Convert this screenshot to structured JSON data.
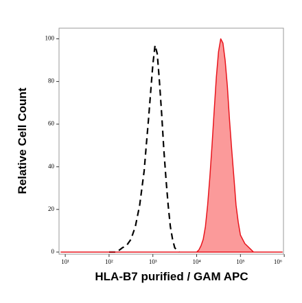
{
  "chart_data": {
    "type": "line",
    "xscale": "log",
    "xlabel": "HLA-B7 purified / GAM APC",
    "ylabel": "Relative Cell Count",
    "xlim": [
      7.2,
      960000
    ],
    "ylim": [
      -1,
      105
    ],
    "xticks": [
      {
        "value": 10,
        "label": "10¹"
      },
      {
        "value": 100,
        "label": "10²"
      },
      {
        "value": 1000,
        "label": "10³"
      },
      {
        "value": 10000,
        "label": "10⁴"
      },
      {
        "value": 100000,
        "label": "10⁵"
      },
      {
        "value": 1000000,
        "label": "10⁶"
      }
    ],
    "yticks": [
      0,
      20,
      40,
      60,
      80,
      100
    ],
    "series": [
      {
        "color": "#000000",
        "dashed": true,
        "filled": false,
        "x": [
          100,
          150,
          200,
          250,
          316,
          398,
          500,
          631,
          708,
          794,
          891,
          1000,
          1122,
          1259,
          1413,
          1585,
          1778,
          1995,
          2239,
          2512,
          2818,
          3162,
          3981
        ],
        "values": [
          0,
          0,
          2,
          3,
          6,
          12,
          22,
          38,
          50,
          62,
          75,
          88,
          97,
          93,
          80,
          65,
          48,
          34,
          22,
          12,
          6,
          2,
          0
        ]
      },
      {
        "color": "#e8141c",
        "fill": "#fb9a9a",
        "dashed": false,
        "filled": true,
        "x": [
          8,
          10000,
          11220,
          12589,
          14125,
          15849,
          17783,
          19953,
          22387,
          25119,
          28184,
          31623,
          35481,
          39811,
          44668,
          50119,
          56234,
          63096,
          70795,
          79433,
          89125,
          100000,
          125893,
          158489,
          199526,
          900000
        ],
        "values": [
          0,
          0,
          1,
          3,
          6,
          12,
          22,
          35,
          50,
          66,
          82,
          94,
          100,
          98,
          90,
          78,
          62,
          48,
          35,
          22,
          14,
          8,
          4,
          2,
          0,
          0
        ]
      }
    ]
  }
}
